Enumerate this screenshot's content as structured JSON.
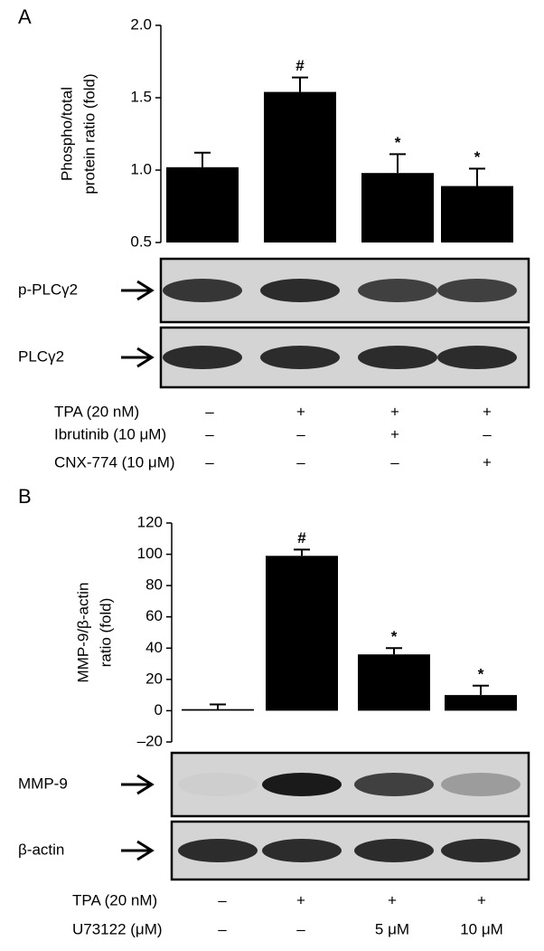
{
  "chart_data": [
    {
      "type": "bar",
      "panel": "A",
      "y_label": [
        "Phospho/total",
        "protein ratio (fold)"
      ],
      "values": [
        1.02,
        1.54,
        0.98,
        0.89
      ],
      "errors": [
        0.1,
        0.1,
        0.13,
        0.12
      ],
      "annotations": [
        null,
        "#",
        "*",
        "*"
      ],
      "color": "#000000",
      "ylim": [
        0.5,
        2.0
      ],
      "yticks": [
        0.5,
        {
          "value": 1,
          "label": "1.0"
        },
        1.5,
        {
          "value": 2,
          "label": "2.0"
        }
      ],
      "blots": [
        "p-PLCγ2",
        "PLCγ2"
      ],
      "treatments": [
        {
          "label": "TPA (20 nM)",
          "signs": [
            "–",
            "+",
            "+",
            "+"
          ]
        },
        {
          "label": "Ibrutinib (10 μM)",
          "signs": [
            "–",
            "–",
            "+",
            "–"
          ]
        },
        {
          "label": "CNX-774 (10 μM)",
          "signs": [
            "–",
            "–",
            "–",
            "+"
          ]
        }
      ]
    },
    {
      "type": "bar",
      "panel": "B",
      "y_label": [
        "MMP-9/β-actin",
        "ratio (fold)"
      ],
      "values": [
        1,
        99,
        36,
        10
      ],
      "errors": [
        3,
        4,
        4,
        6
      ],
      "annotations": [
        null,
        "#",
        "*",
        "*"
      ],
      "color": "#000000",
      "ylim": [
        -20,
        120
      ],
      "yticks": [
        {
          "value": -20,
          "label": "–20"
        },
        0,
        20,
        40,
        60,
        80,
        100,
        120
      ],
      "blots": [
        "MMP-9",
        "β-actin"
      ],
      "treatments": [
        {
          "label": "TPA (20 nM)",
          "signs": [
            "–",
            "+",
            "+",
            "+"
          ]
        },
        {
          "label": "U73122 (μM)",
          "signs": [
            "–",
            "–",
            "5 μM",
            "10 μM"
          ]
        }
      ]
    }
  ]
}
